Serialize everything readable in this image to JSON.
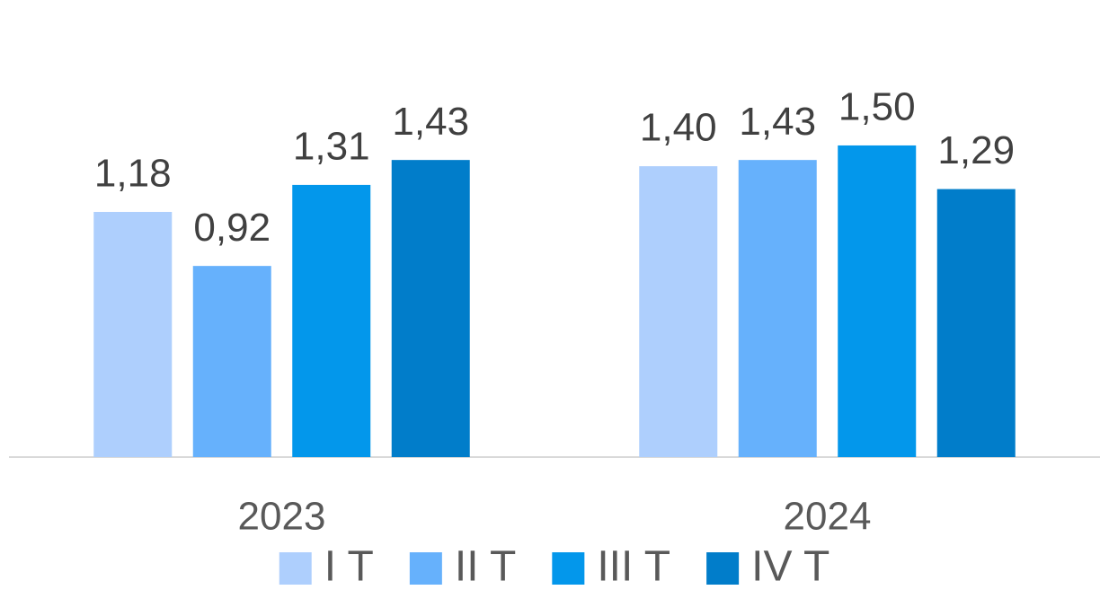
{
  "chart_data": {
    "type": "bar",
    "categories": [
      "2023",
      "2024"
    ],
    "series": [
      {
        "name": "I T",
        "color": "#aecffd",
        "values": [
          1.18,
          1.4
        ],
        "value_labels": [
          "1,18",
          "1,40"
        ]
      },
      {
        "name": "II T",
        "color": "#66b1fc",
        "values": [
          0.92,
          1.43
        ],
        "value_labels": [
          "0,92",
          "1,43"
        ]
      },
      {
        "name": "III T",
        "color": "#0397eb",
        "values": [
          1.31,
          1.5
        ],
        "value_labels": [
          "1,31",
          "1,50"
        ]
      },
      {
        "name": "IV T",
        "color": "#017dca",
        "values": [
          1.43,
          1.29
        ],
        "value_labels": [
          "1,43",
          "1,29"
        ]
      }
    ],
    "ylim": [
      0,
      2.2
    ],
    "legend": "bottom"
  }
}
